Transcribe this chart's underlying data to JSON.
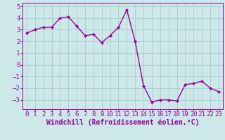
{
  "x": [
    0,
    1,
    2,
    3,
    4,
    5,
    6,
    7,
    8,
    9,
    10,
    11,
    12,
    13,
    14,
    15,
    16,
    17,
    18,
    19,
    20,
    21,
    22,
    23
  ],
  "y": [
    2.7,
    3.0,
    3.2,
    3.2,
    4.0,
    4.1,
    3.3,
    2.5,
    2.6,
    1.9,
    2.5,
    3.2,
    4.7,
    2.0,
    -1.8,
    -3.2,
    -3.0,
    -3.0,
    -3.1,
    -1.7,
    -1.6,
    -1.4,
    -2.0,
    -2.3
  ],
  "line_color": "#990099",
  "marker": "D",
  "marker_size": 2.0,
  "bg_color": "#cce8e8",
  "grid_color": "#aacccc",
  "xlabel": "Windchill (Refroidissement éolien,°C)",
  "ylim": [
    -3.8,
    5.3
  ],
  "yticks": [
    -3,
    -2,
    -1,
    0,
    1,
    2,
    3,
    4,
    5
  ],
  "xlim": [
    -0.5,
    23.5
  ],
  "xticks": [
    0,
    1,
    2,
    3,
    4,
    5,
    6,
    7,
    8,
    9,
    10,
    11,
    12,
    13,
    14,
    15,
    16,
    17,
    18,
    19,
    20,
    21,
    22,
    23
  ],
  "font_color": "#990099",
  "tick_font_size": 6.5,
  "xlabel_font_size": 7.0,
  "linewidth": 1.0
}
